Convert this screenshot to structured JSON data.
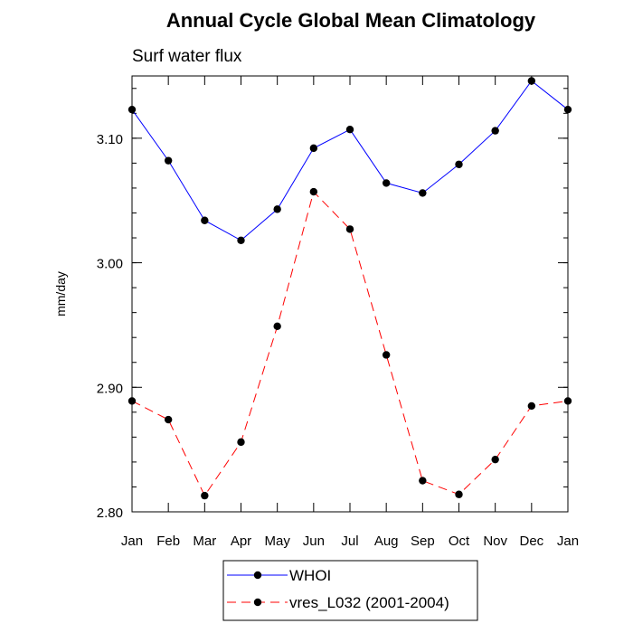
{
  "chart_data": {
    "type": "line",
    "title": "Annual Cycle Global Mean Climatology",
    "subtitle": "Surf water flux",
    "xlabel": "",
    "ylabel": "mm/day",
    "categories": [
      "Jan",
      "Feb",
      "Mar",
      "Apr",
      "May",
      "Jun",
      "Jul",
      "Aug",
      "Sep",
      "Oct",
      "Nov",
      "Dec",
      "Jan"
    ],
    "ylim": [
      2.8,
      3.15
    ],
    "yticks": [
      "2.80",
      "2.90",
      "3.00",
      "3.10"
    ],
    "ytick_values": [
      2.8,
      2.9,
      3.0,
      3.1
    ],
    "series": [
      {
        "name": "WHOI",
        "color": "#0000ff",
        "dash": "solid",
        "values": [
          3.123,
          3.082,
          3.034,
          3.018,
          3.043,
          3.092,
          3.107,
          3.064,
          3.056,
          3.079,
          3.106,
          3.146,
          3.123
        ]
      },
      {
        "name": "vres_L032 (2001-2004)",
        "color": "#ff0000",
        "dash": "dashed",
        "values": [
          2.889,
          2.874,
          2.813,
          2.856,
          2.949,
          3.057,
          3.027,
          2.926,
          2.825,
          2.814,
          2.842,
          2.885,
          2.889
        ]
      }
    ],
    "legend_position": "bottom-center",
    "grid": false
  }
}
